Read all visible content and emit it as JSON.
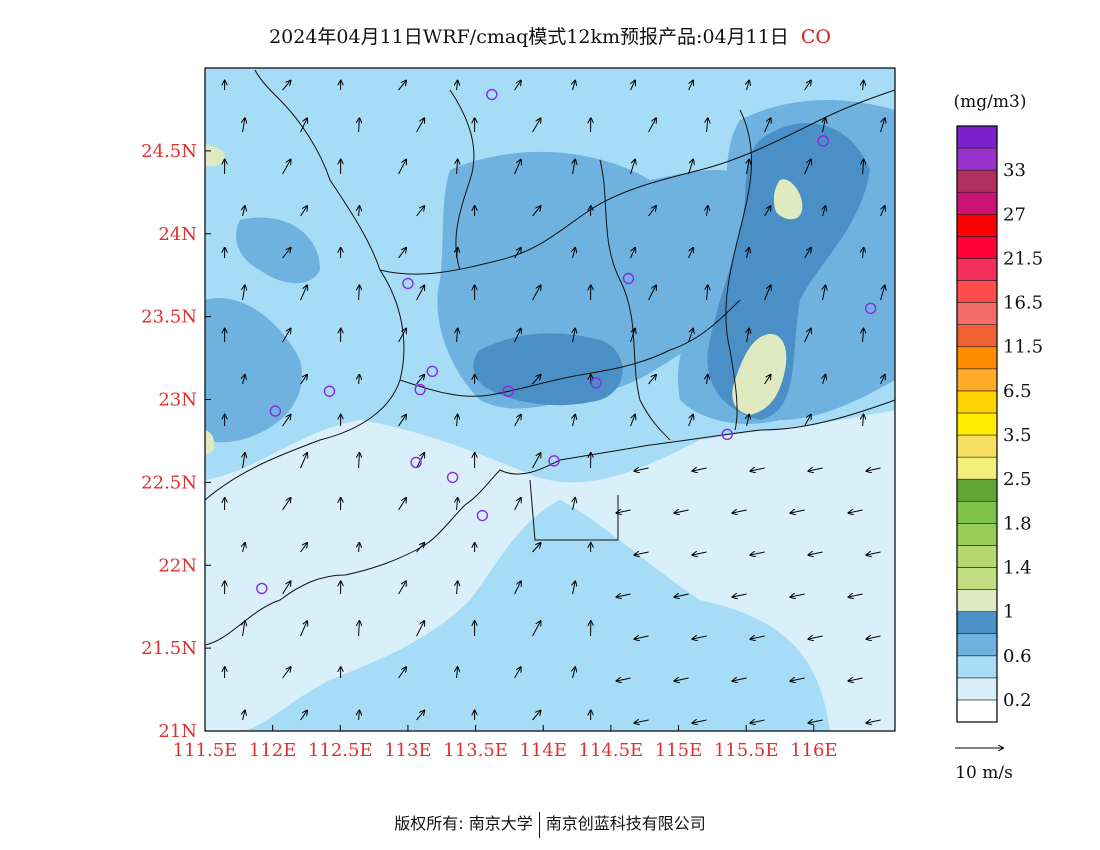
{
  "title": {
    "text": "2024年04月11日WRF/cmaq模式12km预报产品:04月11日",
    "pollutant": "CO"
  },
  "colors": {
    "axis_label": "#e03030",
    "site_marker": "#8a2be2",
    "land_bg": "#bde3f7"
  },
  "axes": {
    "lon_ticks": [
      "111.5E",
      "112E",
      "112.5E",
      "113E",
      "113.5E",
      "114E",
      "114.5E",
      "115E",
      "115.5E",
      "116E"
    ],
    "lat_ticks": [
      "21N",
      "21.5N",
      "22N",
      "22.5N",
      "23N",
      "23.5N",
      "24N",
      "24.5N"
    ],
    "lon_range": [
      111.5,
      116.6
    ],
    "lat_range": [
      21.0,
      25.0
    ]
  },
  "legend": {
    "units": "(mg/m3)",
    "levels": [
      {
        "label": "",
        "color": "#ffffff"
      },
      {
        "label": "0.2",
        "color": "#d9effa"
      },
      {
        "label": "",
        "color": "#a6dcf5"
      },
      {
        "label": "0.6",
        "color": "#6fb2e0"
      },
      {
        "label": "",
        "color": "#4a8fc6"
      },
      {
        "label": "1",
        "color": "#dfeac0"
      },
      {
        "label": "",
        "color": "#c2dc80"
      },
      {
        "label": "1.4",
        "color": "#b5d76e"
      },
      {
        "label": "",
        "color": "#99cc55"
      },
      {
        "label": "1.8",
        "color": "#7ec24a"
      },
      {
        "label": "",
        "color": "#62a63a"
      },
      {
        "label": "2.5",
        "color": "#f0f07a"
      },
      {
        "label": "",
        "color": "#f7e060"
      },
      {
        "label": "3.5",
        "color": "#ffec00"
      },
      {
        "label": "",
        "color": "#ffd200"
      },
      {
        "label": "6.5",
        "color": "#ffab2a"
      },
      {
        "label": "",
        "color": "#ff8c00"
      },
      {
        "label": "11.5",
        "color": "#f06030"
      },
      {
        "label": "",
        "color": "#f56a6a"
      },
      {
        "label": "16.5",
        "color": "#ff4d4d"
      },
      {
        "label": "",
        "color": "#f22e5a"
      },
      {
        "label": "21.5",
        "color": "#ff0033"
      },
      {
        "label": "",
        "color": "#ff0000"
      },
      {
        "label": "27",
        "color": "#cc1177"
      },
      {
        "label": "",
        "color": "#b03060"
      },
      {
        "label": "33",
        "color": "#9933cc"
      },
      {
        "label": "",
        "color": "#7b22cc"
      }
    ],
    "wind_scale": "10 m/s"
  },
  "sites": [
    [
      113.62,
      24.84
    ],
    [
      116.07,
      24.56
    ],
    [
      113.0,
      23.7
    ],
    [
      114.63,
      23.73
    ],
    [
      116.42,
      23.55
    ],
    [
      113.18,
      23.17
    ],
    [
      113.09,
      23.06
    ],
    [
      113.74,
      23.05
    ],
    [
      114.39,
      23.1
    ],
    [
      112.42,
      23.05
    ],
    [
      112.02,
      22.93
    ],
    [
      113.06,
      22.62
    ],
    [
      113.33,
      22.53
    ],
    [
      114.08,
      22.63
    ],
    [
      115.36,
      22.79
    ],
    [
      113.55,
      22.3
    ],
    [
      111.92,
      21.86
    ]
  ],
  "footer": {
    "left": "版权所有: 南京大学",
    "right": "南京创蓝科技有限公司"
  }
}
